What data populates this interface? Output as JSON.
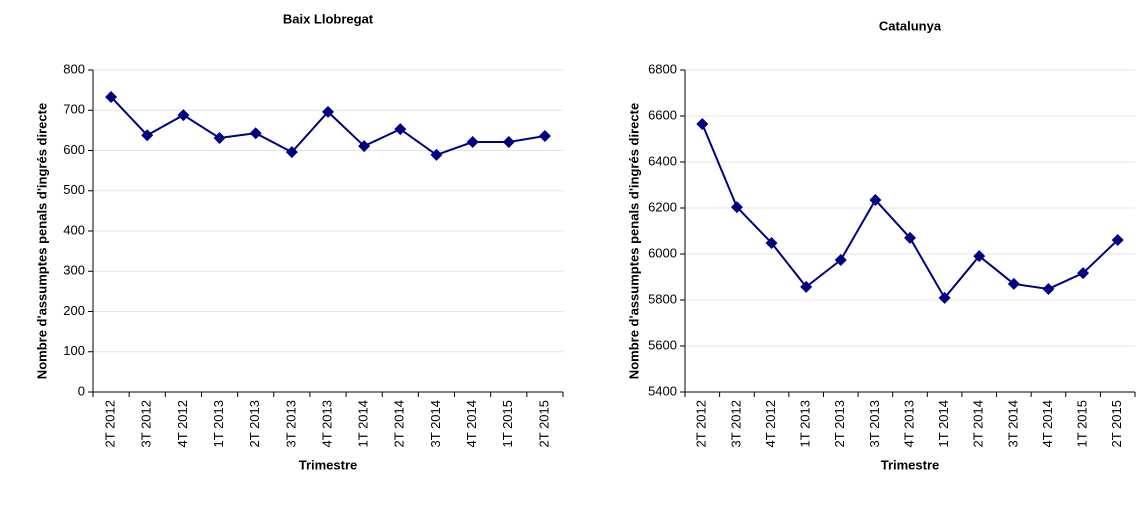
{
  "chart_data": [
    {
      "type": "line",
      "title": "Baix Llobregat",
      "x_label": "Trimestre",
      "y_label": "Nombre d'assumptes penals d'ingrés directe",
      "categories": [
        "2T 2012",
        "3T 2012",
        "4T 2012",
        "1T 2013",
        "2T 2013",
        "3T 2013",
        "4T 2013",
        "1T 2014",
        "2T 2014",
        "3T 2014",
        "4T 2014",
        "1T 2015",
        "2T 2015"
      ],
      "series": [
        {
          "color": "#000080",
          "values": [
            733,
            638,
            688,
            631,
            643,
            596,
            696,
            611,
            653,
            589,
            621,
            621,
            636
          ]
        }
      ],
      "ylim": [
        0,
        800
      ],
      "yticks": [
        0,
        100,
        200,
        300,
        400,
        500,
        600,
        700,
        800
      ],
      "grid": true
    },
    {
      "type": "line",
      "title": "Catalunya",
      "x_label": "Trimestre",
      "y_label": "Nombre d'assumptes penals d'ingrés directe",
      "categories": [
        "2T 2012",
        "3T 2012",
        "4T 2012",
        "1T 2013",
        "2T 2013",
        "3T 2013",
        "4T 2013",
        "1T 2014",
        "2T 2014",
        "3T 2014",
        "4T 2014",
        "1T 2015",
        "2T 2015"
      ],
      "series": [
        {
          "color": "#000080",
          "values": [
            6565,
            6204,
            6048,
            5857,
            5974,
            6235,
            6070,
            5809,
            5991,
            5870,
            5848,
            5917,
            6061
          ]
        }
      ],
      "ylim": [
        5400,
        6800
      ],
      "yticks": [
        5400,
        5600,
        5800,
        6000,
        6200,
        6400,
        6600,
        6800
      ],
      "grid": true
    }
  ]
}
